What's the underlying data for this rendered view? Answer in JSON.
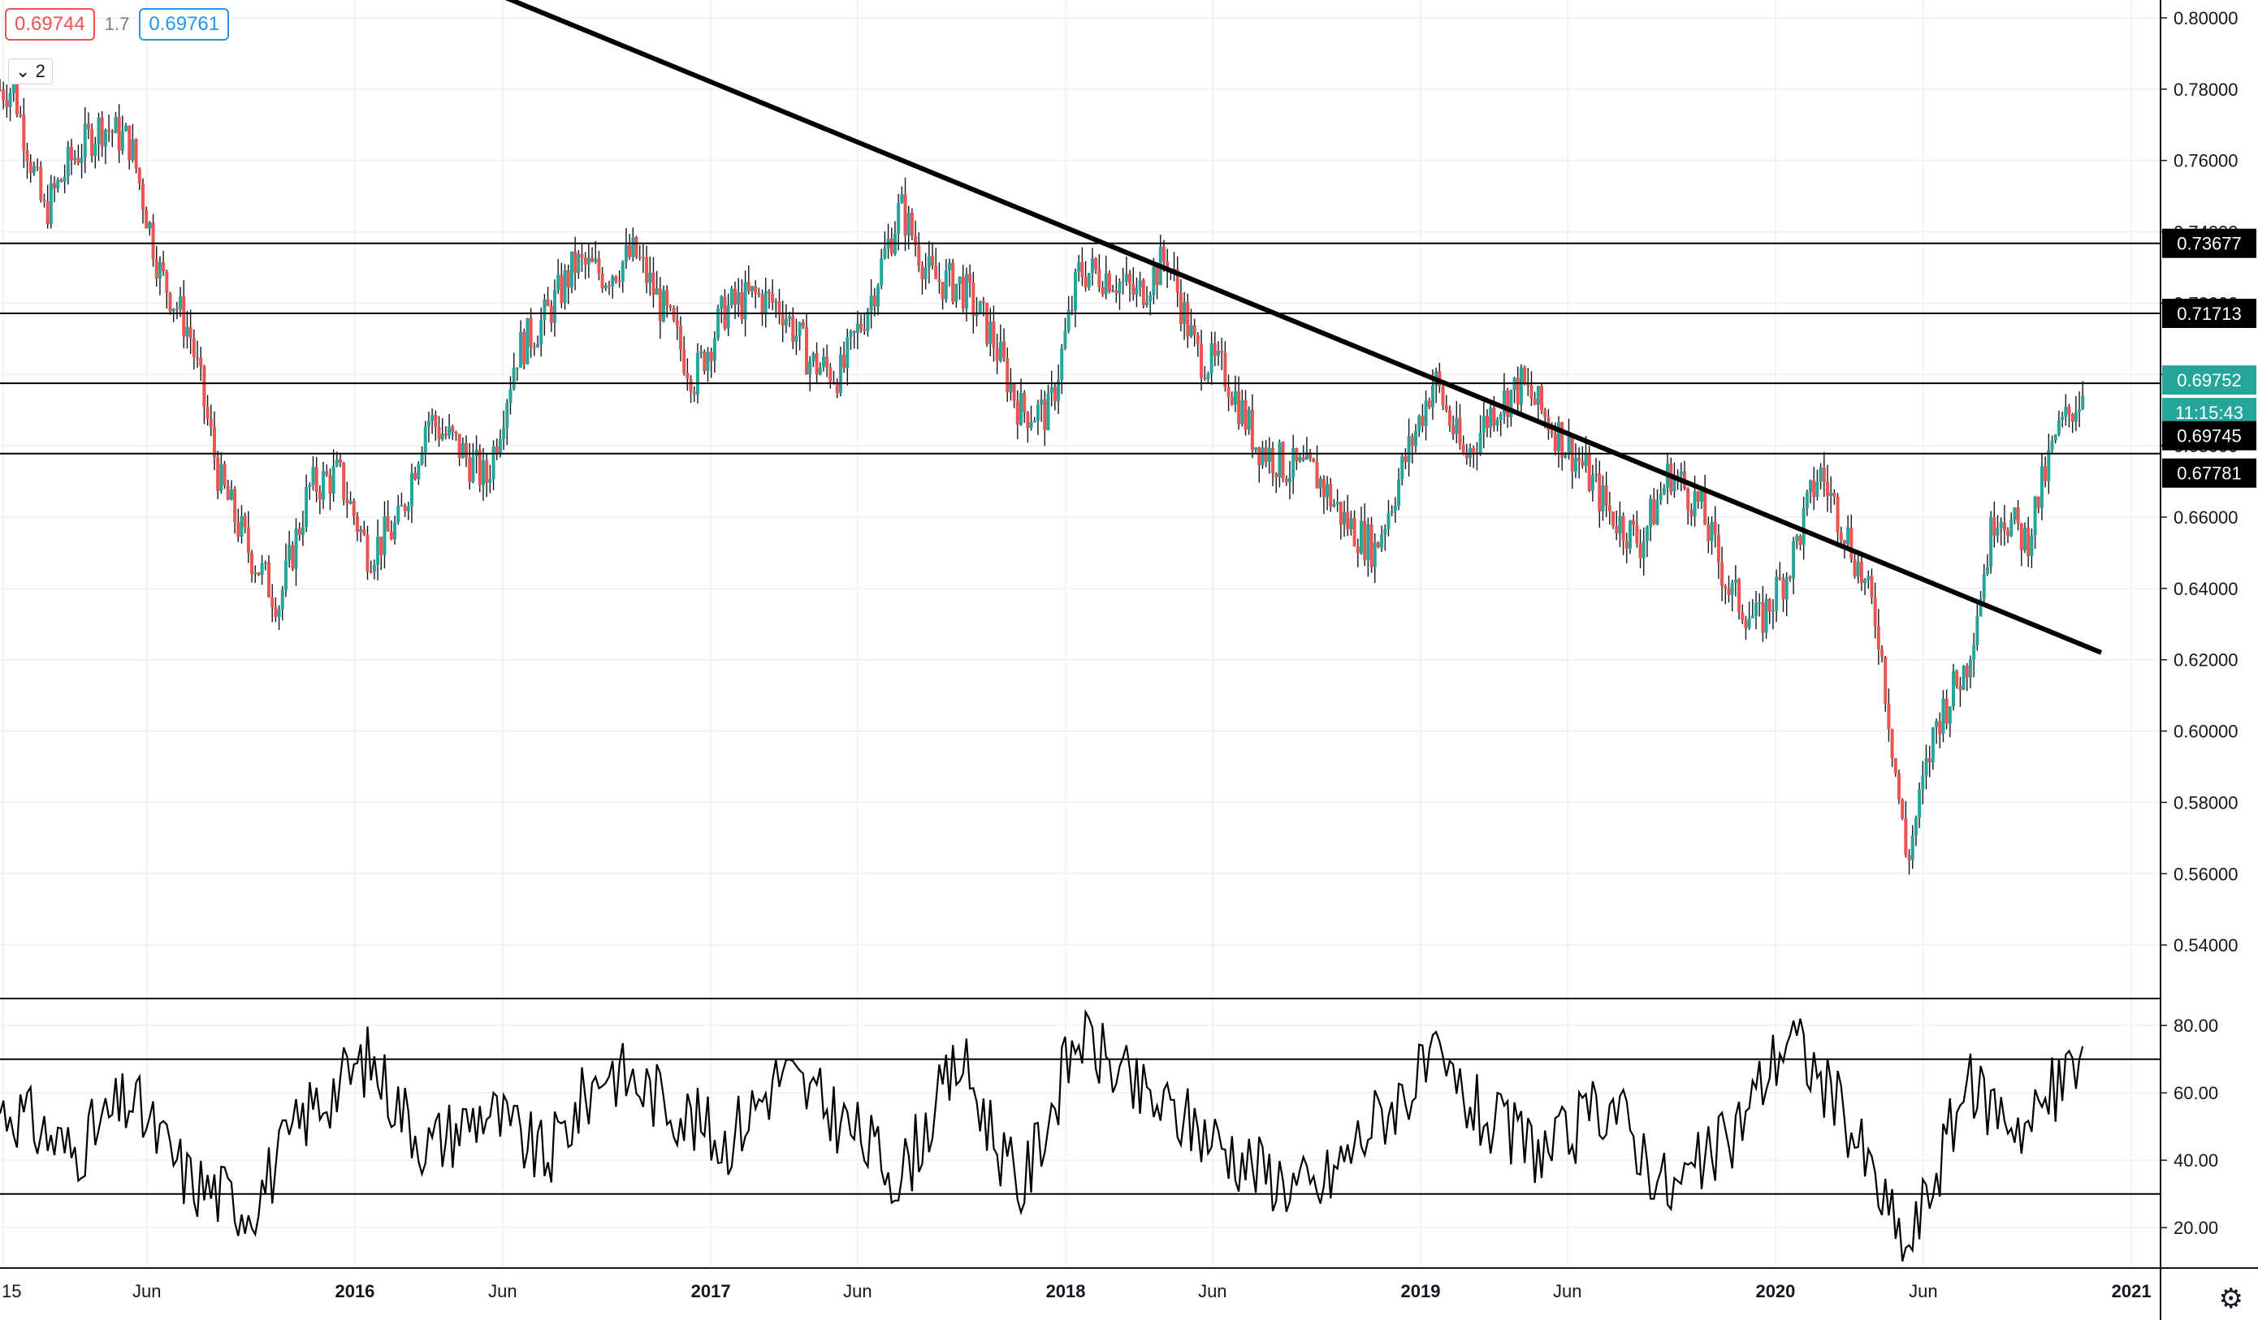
{
  "hud": {
    "sell": "0.69744",
    "spread": "1.7",
    "buy": "0.69761",
    "collapse_count": "2"
  },
  "price_axis_labels": [
    "0.80000",
    "0.78000",
    "0.76000",
    "0.74000",
    "0.72000",
    "0.70000",
    "0.68000",
    "0.66000",
    "0.64000",
    "0.62000",
    "0.60000",
    "0.58000",
    "0.56000",
    "0.54000"
  ],
  "rsi_axis_labels": [
    "80.00",
    "60.00",
    "40.00",
    "20.00"
  ],
  "x_axis_labels": [
    "15",
    "Jun",
    "2016",
    "Jun",
    "2017",
    "Jun",
    "2018",
    "Jun",
    "2019",
    "Jun",
    "2020",
    "Jun",
    "2021"
  ],
  "price_tags": {
    "level_1": "0.73677",
    "level_2": "0.71713",
    "current_price": "0.69752",
    "countdown": "11:15:43",
    "level_3": "0.69745",
    "level_4": "0.67781"
  },
  "colors": {
    "up": "#26a69a",
    "down": "#ef5350",
    "wick": "#131722",
    "current": "#26a69a",
    "grid": "#eef0f3"
  },
  "chart_data": [
    {
      "type": "candlestick",
      "title": "",
      "ylim": [
        0.525,
        0.805
      ],
      "xlim": [
        "2015-01-01",
        "2021-01-31"
      ],
      "horizontal_lines": [
        0.73677,
        0.71713,
        0.69752,
        0.67781
      ],
      "trendline": {
        "from": [
          "2016-06-01",
          0.806
        ],
        "to": [
          "2020-12-01",
          0.622
        ]
      },
      "close_series": {
        "x": [
          "2015-01",
          "2015-02",
          "2015-03",
          "2015-04",
          "2015-05",
          "2015-06",
          "2015-07",
          "2015-08",
          "2015-09",
          "2015-10",
          "2015-11",
          "2015-12",
          "2016-01",
          "2016-02",
          "2016-03",
          "2016-04",
          "2016-05",
          "2016-06",
          "2016-07",
          "2016-08",
          "2016-09",
          "2016-10",
          "2016-11",
          "2016-12",
          "2017-01",
          "2017-02",
          "2017-03",
          "2017-04",
          "2017-05",
          "2017-06",
          "2017-07",
          "2017-08",
          "2017-09",
          "2017-10",
          "2017-11",
          "2017-12",
          "2018-01",
          "2018-02",
          "2018-03",
          "2018-04",
          "2018-05",
          "2018-06",
          "2018-07",
          "2018-08",
          "2018-09",
          "2018-10",
          "2018-11",
          "2018-12",
          "2019-01",
          "2019-02",
          "2019-03",
          "2019-04",
          "2019-05",
          "2019-06",
          "2019-07",
          "2019-08",
          "2019-09",
          "2019-10",
          "2019-11",
          "2019-12",
          "2020-01",
          "2020-02",
          "2020-03",
          "2020-04",
          "2020-05",
          "2020-06",
          "2020-07",
          "2020-08",
          "2020-09",
          "2020-10",
          "2020-11"
        ],
        "values": [
          0.78,
          0.745,
          0.76,
          0.77,
          0.765,
          0.728,
          0.712,
          0.67,
          0.65,
          0.636,
          0.668,
          0.672,
          0.65,
          0.658,
          0.688,
          0.68,
          0.67,
          0.706,
          0.716,
          0.731,
          0.728,
          0.734,
          0.717,
          0.699,
          0.718,
          0.722,
          0.719,
          0.703,
          0.7,
          0.722,
          0.747,
          0.727,
          0.725,
          0.712,
          0.69,
          0.689,
          0.729,
          0.728,
          0.722,
          0.733,
          0.706,
          0.7,
          0.681,
          0.674,
          0.672,
          0.659,
          0.651,
          0.675,
          0.699,
          0.676,
          0.69,
          0.697,
          0.686,
          0.675,
          0.661,
          0.653,
          0.673,
          0.663,
          0.639,
          0.63,
          0.646,
          0.673,
          0.655,
          0.63,
          0.563,
          0.603,
          0.618,
          0.663,
          0.653,
          0.682,
          0.697
        ]
      }
    },
    {
      "type": "line",
      "title": "",
      "ylim": [
        8,
        88
      ],
      "levels": [
        70,
        30
      ],
      "x": [
        "2015-01",
        "2015-03",
        "2015-05",
        "2015-07",
        "2015-09",
        "2015-11",
        "2016-01",
        "2016-03",
        "2016-05",
        "2016-07",
        "2016-09",
        "2016-11",
        "2017-01",
        "2017-03",
        "2017-05",
        "2017-07",
        "2017-09",
        "2017-11",
        "2018-01",
        "2018-03",
        "2018-05",
        "2018-07",
        "2018-09",
        "2018-11",
        "2019-01",
        "2019-03",
        "2019-05",
        "2019-07",
        "2019-09",
        "2019-11",
        "2020-01",
        "2020-03",
        "2020-05",
        "2020-07",
        "2020-09",
        "2020-11"
      ],
      "values": [
        55,
        42,
        58,
        34,
        26,
        55,
        70,
        44,
        55,
        40,
        68,
        58,
        45,
        66,
        52,
        35,
        70,
        30,
        78,
        60,
        50,
        38,
        30,
        52,
        68,
        50,
        42,
        58,
        30,
        46,
        78,
        52,
        12,
        62,
        50,
        72
      ]
    }
  ]
}
